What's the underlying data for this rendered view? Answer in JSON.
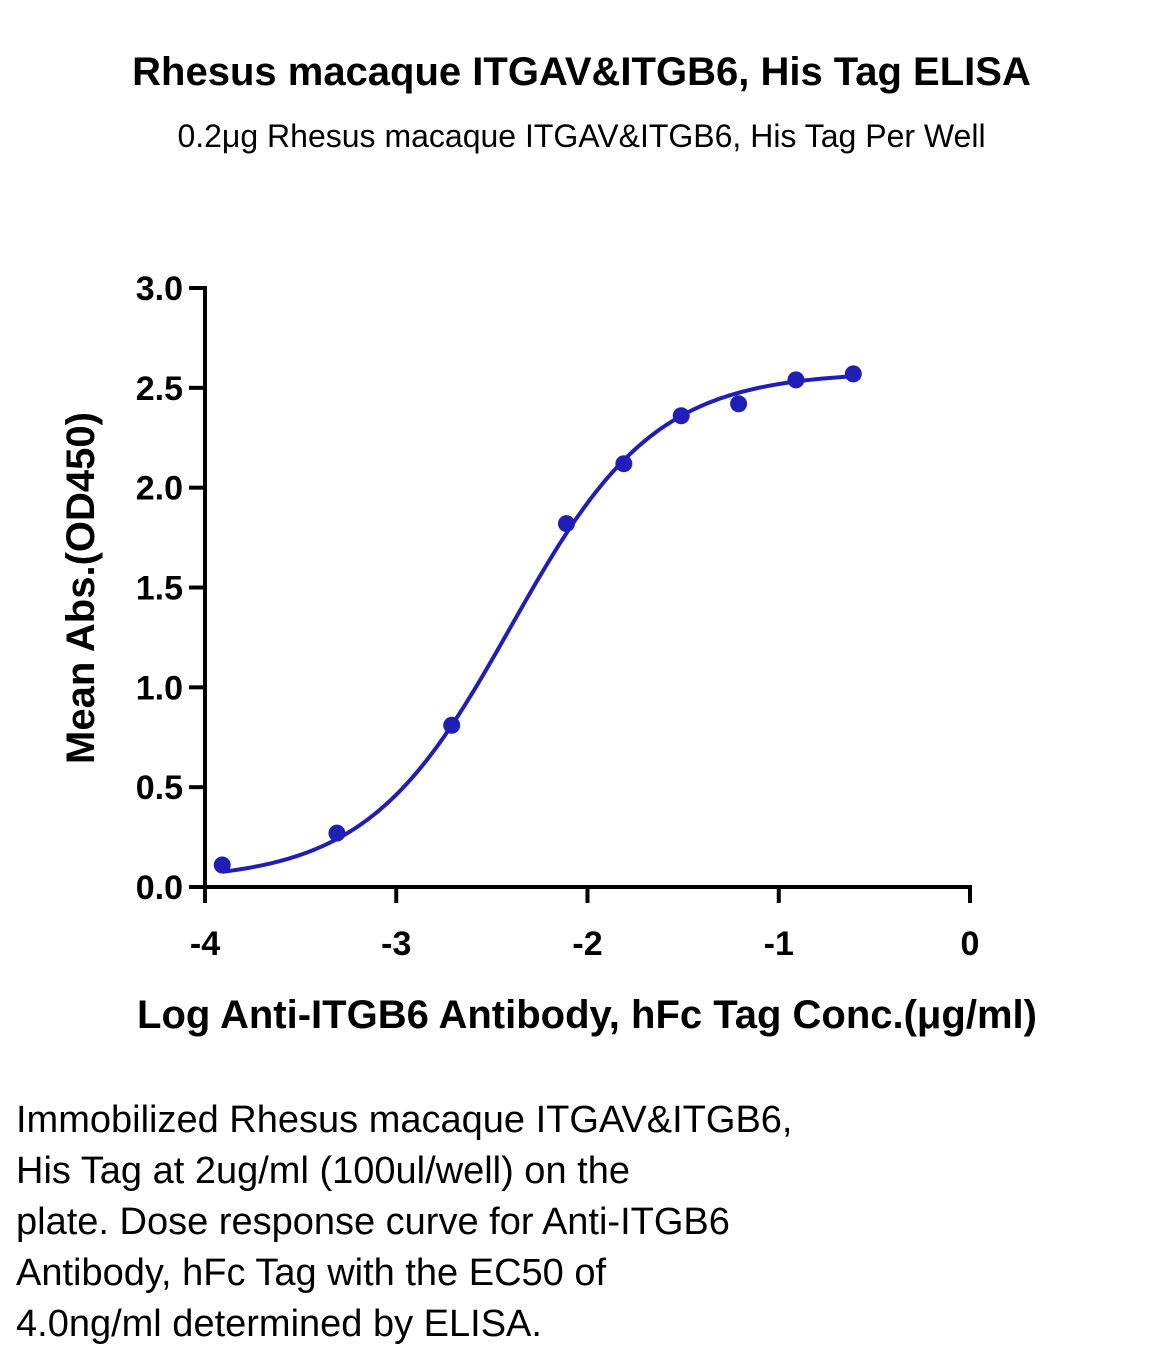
{
  "header": {
    "title": "Rhesus macaque ITGAV&ITGB6, His Tag ELISA",
    "subtitle": "0.2μg Rhesus macaque ITGAV&ITGB6, His Tag Per Well"
  },
  "chart_data": {
    "type": "scatter",
    "xlabel": "Log Anti-ITGB6 Antibody, hFc Tag Conc.(μg/ml)",
    "ylabel": "Mean Abs.(OD450)",
    "xlim": [
      -4,
      0
    ],
    "ylim": [
      0,
      3.0
    ],
    "xticks": [
      "-4",
      "-3",
      "-2",
      "-1",
      "0"
    ],
    "yticks": [
      "0.0",
      "0.5",
      "1.0",
      "1.5",
      "2.0",
      "2.5",
      "3.0"
    ],
    "grid": false,
    "series": [
      {
        "x": [
          -3.91,
          -3.31,
          -2.71,
          -2.11,
          -1.81,
          -1.51,
          -1.21,
          -0.91,
          -0.61
        ],
        "y": [
          0.11,
          0.27,
          0.81,
          1.82,
          2.12,
          2.36,
          2.42,
          2.54,
          2.57
        ],
        "fit": "four-parameter logistic",
        "color": "#1F1FB8"
      }
    ]
  },
  "caption": {
    "lines": [
      "Immobilized Rhesus macaque ITGAV&ITGB6,",
      "His Tag at 2ug/ml (100ul/well) on the",
      "plate. Dose response curve for Anti-ITGB6",
      "Antibody, hFc Tag with the EC50 of",
      "4.0ng/ml determined by ELISA."
    ]
  }
}
